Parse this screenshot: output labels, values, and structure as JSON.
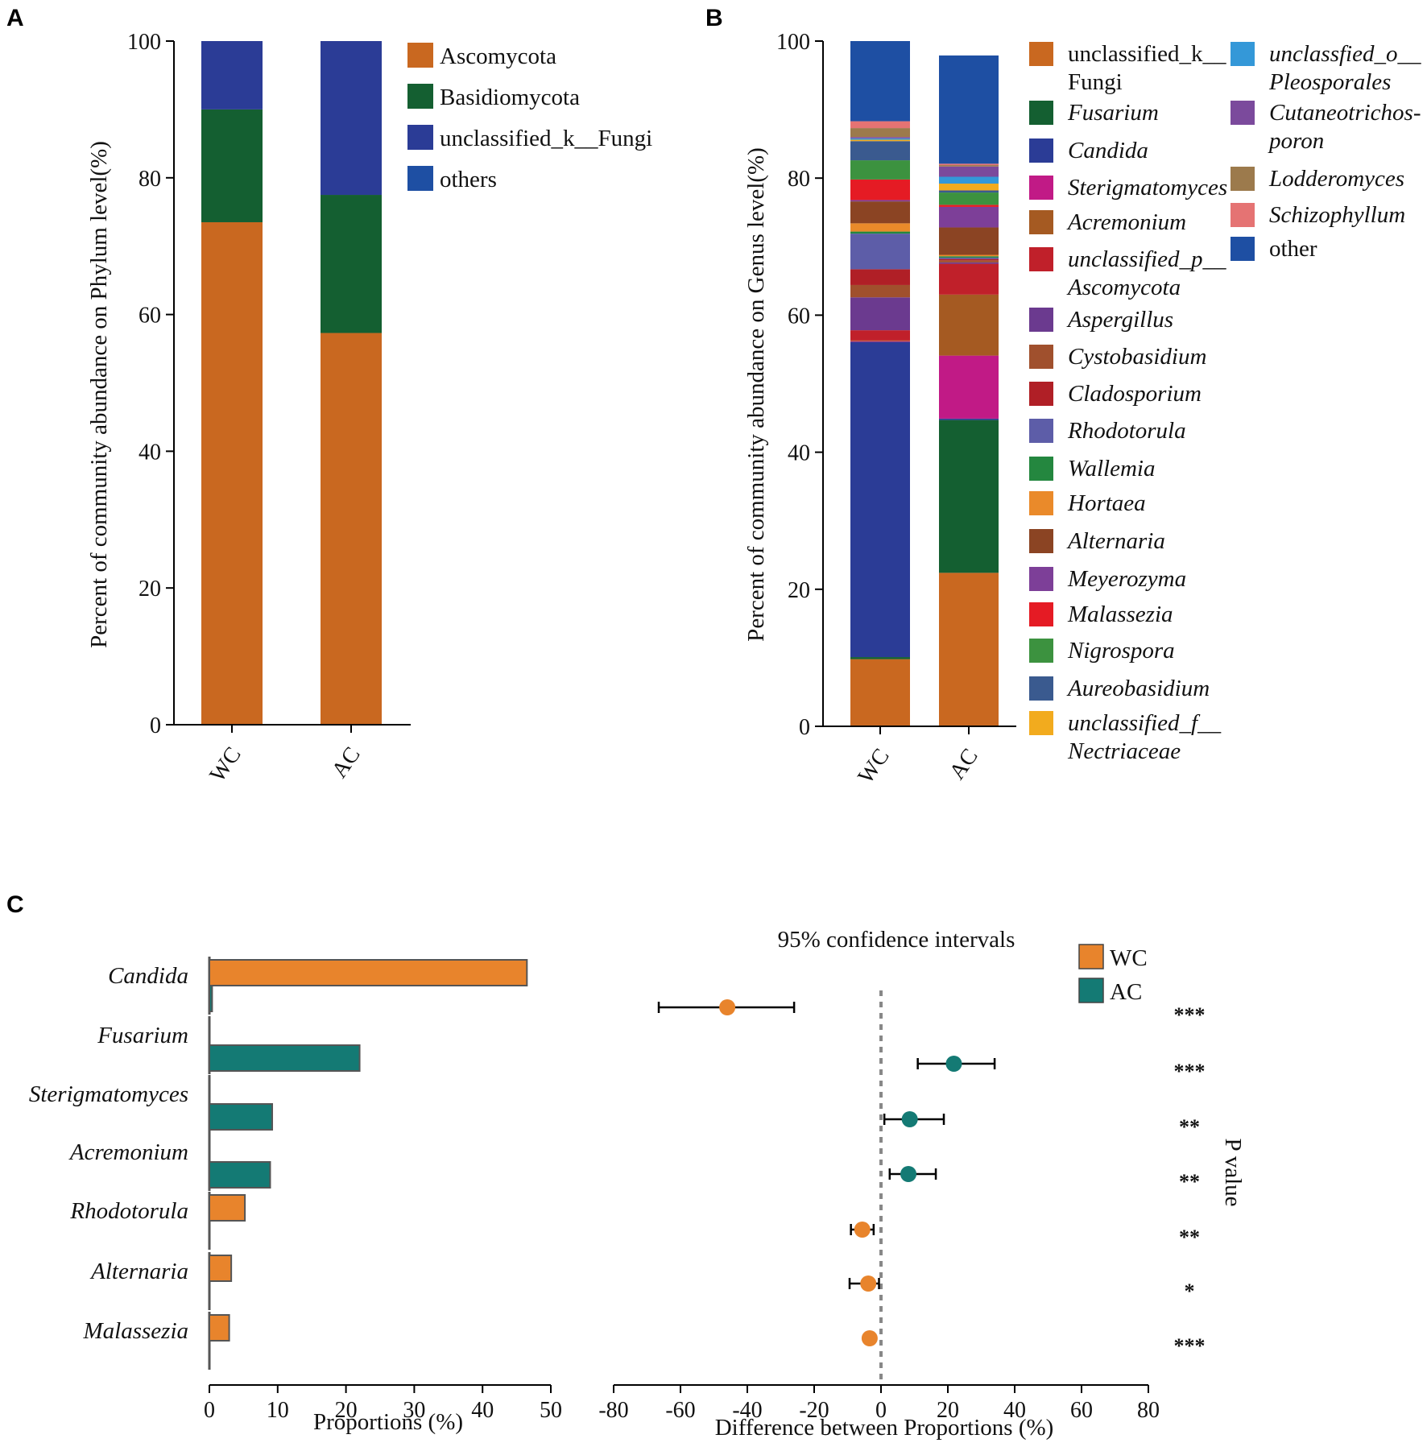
{
  "panels": {
    "a": "A",
    "b": "B",
    "c": "C"
  },
  "colors": {
    "WC": "#e8842c",
    "AC": "#147a74",
    "bar_stroke": "#555555",
    "error": "#000000",
    "zero_line": "#888888"
  },
  "chart_data": [
    {
      "id": "A",
      "type": "bar",
      "stacked": true,
      "categories": [
        "WC",
        "AC"
      ],
      "ylabel": "Percent of community abundance on  Phylum level(%)",
      "ylim": [
        0,
        100
      ],
      "yticks": [
        "0",
        "20",
        "40",
        "60",
        "80",
        "100"
      ],
      "series": [
        {
          "name": "Ascomycota",
          "color": "#c96820",
          "values": [
            73.5,
            57.3
          ]
        },
        {
          "name": "Basidiomycota",
          "color": "#145f31",
          "values": [
            16.5,
            20.2
          ]
        },
        {
          "name": "unclassified_k__Fungi",
          "color": "#2b3c96",
          "values": [
            10.0,
            22.5
          ]
        },
        {
          "name": "others",
          "color": "#1e4fa3",
          "values": [
            0,
            0
          ]
        }
      ]
    },
    {
      "id": "B",
      "type": "bar",
      "stacked": true,
      "categories": [
        "WC",
        "AC"
      ],
      "ylabel": "Percent of community abundance on Genus level(%)",
      "ylim": [
        0,
        100
      ],
      "yticks": [
        "0",
        "20",
        "40",
        "60",
        "80",
        "100"
      ],
      "series": [
        {
          "name": "unclassified_k__",
          "name2": "Fungi",
          "italic": false,
          "color": "#c96820",
          "values": [
            9.8,
            22.4
          ]
        },
        {
          "name": "Fusarium",
          "italic": true,
          "color": "#145f31",
          "values": [
            0.3,
            22.3
          ]
        },
        {
          "name": "Candida",
          "italic": true,
          "color": "#2b3c96",
          "values": [
            46.0,
            0.2
          ]
        },
        {
          "name": "Sterigmatomyces",
          "italic": true,
          "color": "#c11a86",
          "values": [
            0.1,
            9.2
          ]
        },
        {
          "name": "Acremonium",
          "italic": true,
          "color": "#a55a22",
          "values": [
            0.1,
            8.9
          ]
        },
        {
          "name": "unclassified_p__",
          "name2": "Ascomycota",
          "italic": true,
          "color": "#c0202a",
          "values": [
            1.5,
            4.5
          ]
        },
        {
          "name": "Aspergillus",
          "italic": true,
          "color": "#6b3a8f",
          "values": [
            4.8,
            0.2
          ]
        },
        {
          "name": "Cystobasidium",
          "italic": true,
          "color": "#a0502d",
          "values": [
            1.8,
            0.3
          ]
        },
        {
          "name": "Cladosporium",
          "italic": true,
          "color": "#b01f26",
          "values": [
            2.3,
            0.2
          ]
        },
        {
          "name": "Rhodotorula",
          "italic": true,
          "color": "#5d5da8",
          "values": [
            5.2,
            0.2
          ]
        },
        {
          "name": "Wallemia",
          "italic": true,
          "color": "#24873f",
          "values": [
            0.3,
            0.2
          ]
        },
        {
          "name": "Hortaea",
          "italic": true,
          "color": "#ea8a2a",
          "values": [
            1.2,
            0.2
          ]
        },
        {
          "name": "Alternaria",
          "italic": true,
          "color": "#8b4423",
          "values": [
            3.2,
            4.0
          ]
        },
        {
          "name": "Meyerozyma",
          "italic": true,
          "color": "#7d3f98",
          "values": [
            0.2,
            3.0
          ]
        },
        {
          "name": "Malassezia",
          "italic": true,
          "color": "#e51b24",
          "values": [
            3.0,
            0.3
          ]
        },
        {
          "name": "Nigrospora",
          "italic": true,
          "color": "#3c923f",
          "values": [
            2.8,
            1.8
          ]
        },
        {
          "name": "Aureobasidium",
          "italic": true,
          "color": "#3a5a8f",
          "values": [
            2.8,
            0.3
          ]
        },
        {
          "name": "unclassified_f__",
          "name2": "Nectriaceae",
          "italic": true,
          "color": "#f2ab1e",
          "values": [
            0.2,
            1.0
          ]
        },
        {
          "name": "unclassfied_o__",
          "name2": "Pleosporales",
          "italic": true,
          "color": "#3498d8",
          "values": [
            0.2,
            1.0
          ]
        },
        {
          "name": "Cutaneotrichos-",
          "name2": "poron",
          "italic": true,
          "color": "#7b4a9c",
          "values": [
            0.2,
            1.5
          ]
        },
        {
          "name": "Lodderomyces",
          "italic": true,
          "color": "#9c7a4c",
          "values": [
            1.3,
            0.2
          ]
        },
        {
          "name": "Schizophyllum",
          "italic": true,
          "color": "#e57373",
          "values": [
            1.0,
            0.2
          ]
        },
        {
          "name": "other",
          "italic": false,
          "color": "#1e4fa3",
          "values": [
            11.7,
            15.8
          ]
        }
      ]
    },
    {
      "id": "C-left",
      "type": "bar",
      "orientation": "horizontal",
      "categories": [
        "Candida",
        "Fusarium",
        "Sterigmatomyces",
        "Acremonium",
        "Rhodotorula",
        "Alternaria",
        "Malassezia"
      ],
      "series": [
        {
          "name": "WC",
          "values": [
            46.5,
            0.1,
            0.1,
            0.1,
            5.2,
            3.2,
            2.9
          ]
        },
        {
          "name": "AC",
          "values": [
            0.4,
            22.0,
            9.2,
            8.9,
            0.1,
            0.1,
            0.1
          ]
        }
      ],
      "xlabel": "Proportions (%)",
      "xlim": [
        0,
        50
      ],
      "xticks": [
        "0",
        "10",
        "20",
        "30",
        "40",
        "50"
      ]
    },
    {
      "id": "C-right",
      "type": "scatter",
      "title": "95% confidence intervals",
      "categories": [
        "Candida",
        "Fusarium",
        "Sterigmatomyces",
        "Acremonium",
        "Rhodotorula",
        "Alternaria",
        "Malassezia"
      ],
      "difference": [
        -46.0,
        21.8,
        8.6,
        8.2,
        -5.6,
        -3.8,
        -3.4
      ],
      "ci_low": [
        -66.5,
        11.0,
        1.0,
        2.6,
        -9.0,
        -9.4,
        -3.4
      ],
      "ci_high": [
        -26.0,
        34.0,
        18.8,
        16.4,
        -2.2,
        -0.6,
        -3.4
      ],
      "group": [
        "WC",
        "AC",
        "AC",
        "AC",
        "WC",
        "WC",
        "WC"
      ],
      "p_value_stars": [
        "***",
        "***",
        "**",
        "**",
        "**",
        "*",
        "***"
      ],
      "xlabel": "Difference between Proportions (%)",
      "xlim": [
        -80,
        80
      ],
      "xticks": [
        "-80",
        "-60",
        "-40",
        "-20",
        "0",
        "20",
        "40",
        "60",
        "80"
      ],
      "ylabel_right": "P value",
      "legend": [
        "WC",
        "AC"
      ]
    }
  ]
}
